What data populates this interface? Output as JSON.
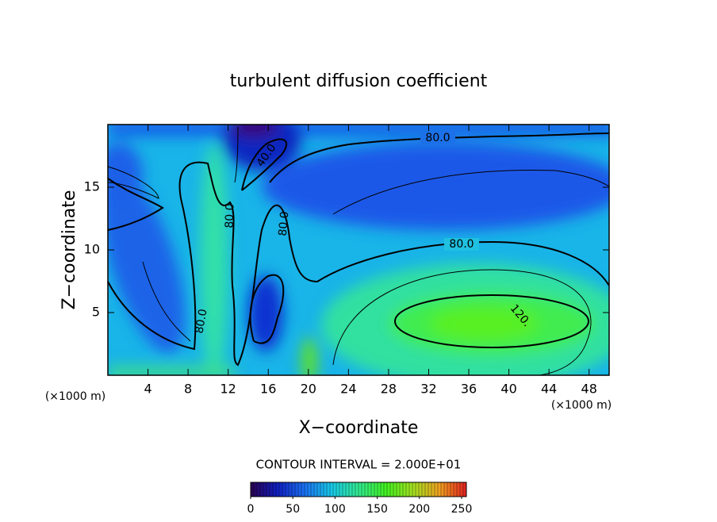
{
  "chart_data": {
    "type": "contour",
    "title": "turbulent diffusion coefficient",
    "xlabel": "X−coordinate",
    "ylabel": "Z−coordinate",
    "x_unit": "(×1000 m)",
    "y_unit": "(×1000 m)",
    "xlim": [
      0,
      50
    ],
    "xticks": [
      4,
      8,
      12,
      16,
      20,
      24,
      28,
      32,
      36,
      40,
      44,
      48
    ],
    "ylim": [
      0,
      20
    ],
    "yticks": [
      5,
      10,
      15
    ],
    "contour_note": "CONTOUR INTERVAL = 2.000E+01",
    "contours": [
      {
        "value": 40,
        "label": "40.0"
      },
      {
        "value": 80,
        "label": "80.0"
      },
      {
        "value": 120,
        "label": "120."
      }
    ],
    "clim": [
      0,
      250
    ],
    "cticks": [
      0,
      50,
      100,
      150,
      200,
      250
    ],
    "colormap": [
      "#2a0050",
      "#1020c0",
      "#1a70f0",
      "#18c8e8",
      "#30e890",
      "#40f020",
      "#a0e020",
      "#f0a020",
      "#e02020"
    ]
  }
}
